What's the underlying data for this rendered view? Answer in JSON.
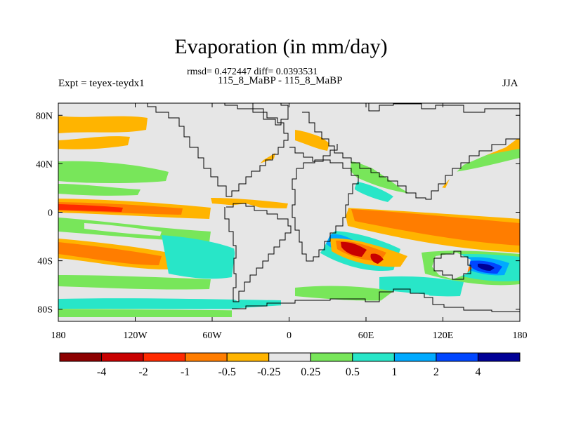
{
  "figure": {
    "title": "Evaporation (in mm/day)",
    "stats": "rmsd= 0.472447 diff= 0.0393531",
    "case_line": "115_8_MaBP - 115_8_MaBP",
    "left_label": "Expt = teyex-teydx1",
    "right_label": "JJA"
  },
  "chart_data": {
    "type": "heatmap",
    "title": "Evaporation (in mm/day)",
    "x_ticks": [
      "180",
      "120W",
      "60W",
      "0",
      "60E",
      "120E",
      "180"
    ],
    "x_tick_values": [
      -180,
      -120,
      -60,
      0,
      60,
      120,
      180
    ],
    "y_ticks": [
      "80N",
      "40N",
      "0",
      "40S",
      "80S"
    ],
    "y_tick_values": [
      80,
      40,
      0,
      -40,
      -80
    ],
    "xlim": [
      -180,
      180
    ],
    "ylim": [
      -90,
      90
    ],
    "colorbar": {
      "labels": [
        "-4",
        "-2",
        "-1",
        "-0.5",
        "-0.25",
        "0.25",
        "0.5",
        "1",
        "2",
        "4"
      ],
      "colors": [
        "#8c0000",
        "#c80000",
        "#ff2a00",
        "#ff7d00",
        "#ffb400",
        "#e6e6e6",
        "#78e65a",
        "#28e6c8",
        "#00aaff",
        "#0046ff",
        "#000096"
      ]
    },
    "regions": [
      {
        "level": "-0.5",
        "lon": [
          -180,
          -100
        ],
        "lat": [
          -3,
          3
        ]
      },
      {
        "level": "-1",
        "lon": [
          -180,
          -150
        ],
        "lat": [
          -2,
          2
        ]
      },
      {
        "level": "-0.5",
        "lon": [
          -180,
          -90
        ],
        "lat": [
          -40,
          -25
        ]
      },
      {
        "level": "-0.5",
        "lon": [
          50,
          180
        ],
        "lat": [
          -10,
          -2
        ]
      },
      {
        "level": "-0.25",
        "lon": [
          -180,
          -115
        ],
        "lat": [
          55,
          70
        ]
      },
      {
        "level": "-0.25",
        "lon": [
          120,
          180
        ],
        "lat": [
          40,
          55
        ]
      },
      {
        "level": "-0.5",
        "lon": [
          35,
          70
        ],
        "lat": [
          -38,
          -20
        ]
      },
      {
        "level": "2",
        "lon": [
          140,
          165
        ],
        "lat": [
          -45,
          -37
        ]
      },
      {
        "level": "4",
        "lon": [
          145,
          160
        ],
        "lat": [
          -43,
          -39
        ]
      }
    ]
  }
}
